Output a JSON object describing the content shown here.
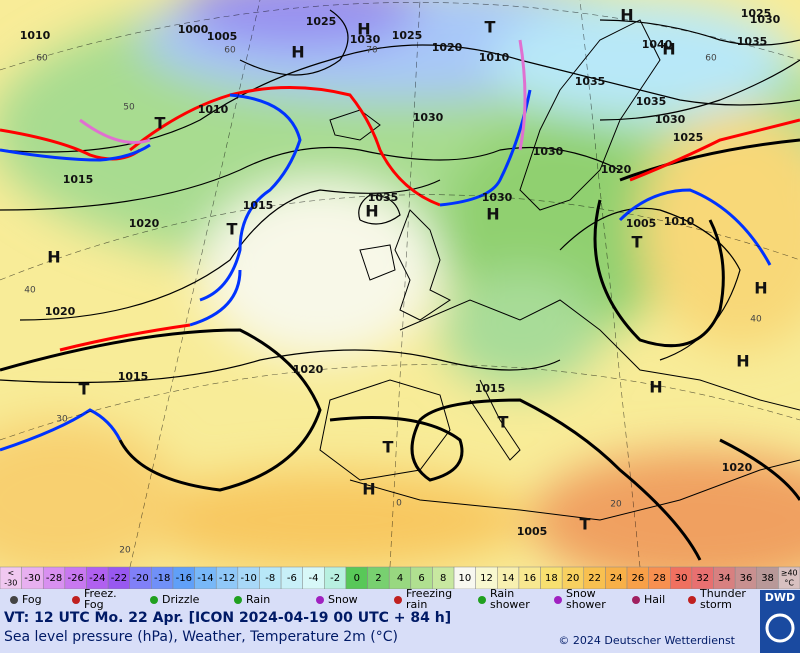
{
  "map": {
    "isobar_labels": [
      1010,
      1000,
      1005,
      1025,
      1030,
      1025,
      1020,
      1010,
      1030,
      1035,
      1035,
      1030,
      1025,
      1030,
      1020,
      1025,
      1030,
      1035,
      1040,
      1010,
      1015,
      1015,
      1035,
      1030,
      1020,
      1005,
      1010,
      1020,
      1020,
      1015,
      1015,
      1020,
      1005
    ],
    "temperature_labels": [
      60,
      60,
      70,
      60,
      50,
      40,
      40,
      30,
      20,
      20,
      0
    ],
    "high_labels": [
      "H",
      "H",
      "H",
      "H",
      "H",
      "H",
      "H",
      "H",
      "H",
      "H",
      "H"
    ],
    "low_labels": [
      "T",
      "T",
      "T",
      "T",
      "T",
      "T",
      "T",
      "T"
    ]
  },
  "temperature_scale": {
    "low_end": {
      "symbol": "<",
      "value": -30,
      "color": "#f0c8f0"
    },
    "steps": [
      -30,
      -28,
      -26,
      -24,
      -22,
      -20,
      -18,
      -16,
      -14,
      -12,
      -10,
      -8,
      -6,
      -4,
      -2,
      0,
      2,
      4,
      6,
      8,
      10,
      12,
      14,
      16,
      18,
      20,
      22,
      24,
      26,
      28,
      30,
      32,
      34,
      36,
      38
    ],
    "colors": [
      "#e8b0f0",
      "#d890f0",
      "#c878f0",
      "#b060f0",
      "#9858f0",
      "#8080f8",
      "#7090f8",
      "#60a0f8",
      "#78b8f8",
      "#90c8f8",
      "#a8d8f8",
      "#b8e8f8",
      "#c8f0f8",
      "#d8f8f8",
      "#b8f0e0",
      "#58c858",
      "#78d070",
      "#98d880",
      "#b0e090",
      "#c8e8a0",
      "#f8f8f0",
      "#f8f8d0",
      "#f8f0b0",
      "#f8e890",
      "#f8e070",
      "#f8d060",
      "#f8c050",
      "#f8b048",
      "#f8a048",
      "#f89050",
      "#f07060",
      "#e87070",
      "#d88080",
      "#c89090",
      "#b89898"
    ],
    "high_end": {
      "label": "≥40",
      "unit": "°C",
      "color": "#d8c0c0"
    }
  },
  "weather_legend": [
    "Fog",
    "Freez. Fog",
    "Drizzle",
    "Rain",
    "Snow",
    "Freezing rain",
    "Rain shower",
    "Snow shower",
    "Hail",
    "Thunder storm"
  ],
  "footer": {
    "valid_time": "VT: 12 UTC Mo.   22 Apr. [ICON 2024-04-19  00 UTC + 84 h]",
    "description": "Sea level pressure (hPa), Weather, Temperature 2m (°C)",
    "copyright": "© 2024 Deutscher Wetterdienst",
    "logo": "DWD"
  }
}
